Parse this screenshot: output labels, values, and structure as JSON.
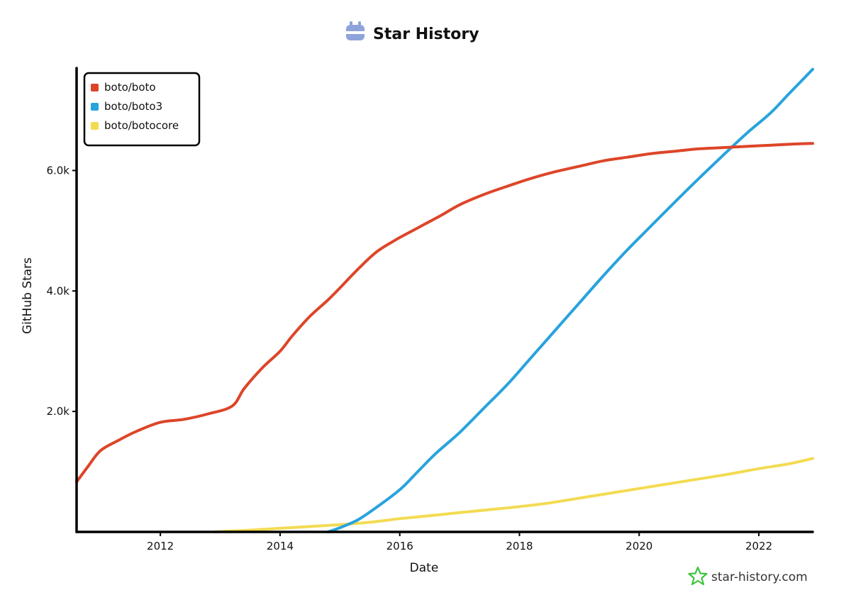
{
  "header": {
    "title": "Star History",
    "icon": "star-history-logo-icon"
  },
  "footer": {
    "watermark": "star-history.com",
    "icon": "star-outline-icon"
  },
  "colors": {
    "boto": "#dd4528",
    "boto3": "#28a3dd",
    "botocore": "#f3db52",
    "axis": "#000000"
  },
  "chart_data": {
    "type": "line",
    "title": "Star History",
    "xlabel": "Date",
    "ylabel": "GitHub Stars",
    "xlim": [
      2010.6,
      2022.9
    ],
    "ylim": [
      0,
      7700
    ],
    "x_ticks": [
      2012,
      2014,
      2016,
      2018,
      2020,
      2022
    ],
    "x_tick_labels": [
      "2012",
      "2014",
      "2016",
      "2018",
      "2020",
      "2022"
    ],
    "y_ticks": [
      2000,
      4000,
      6000
    ],
    "y_tick_labels": [
      "2.0k",
      "4.0k",
      "6.0k"
    ],
    "legend_position": "top-left",
    "series": [
      {
        "name": "boto/boto",
        "color": "#dd4528",
        "x": [
          2010.6,
          2010.8,
          2011.0,
          2011.3,
          2011.6,
          2012.0,
          2012.4,
          2012.8,
          2013.2,
          2013.4,
          2013.7,
          2014.0,
          2014.2,
          2014.5,
          2014.8,
          2015.0,
          2015.3,
          2015.6,
          2015.9,
          2016.1,
          2016.4,
          2016.7,
          2017.0,
          2017.4,
          2017.8,
          2018.2,
          2018.6,
          2019.0,
          2019.4,
          2019.8,
          2020.2,
          2020.6,
          2021.0,
          2021.4,
          2021.8,
          2022.2,
          2022.6,
          2022.9
        ],
        "values": [
          830,
          1100,
          1350,
          1520,
          1670,
          1820,
          1870,
          1960,
          2090,
          2380,
          2720,
          3000,
          3250,
          3580,
          3850,
          4050,
          4360,
          4640,
          4830,
          4940,
          5100,
          5260,
          5430,
          5600,
          5740,
          5870,
          5980,
          6070,
          6160,
          6220,
          6280,
          6320,
          6360,
          6380,
          6400,
          6420,
          6440,
          6450
        ]
      },
      {
        "name": "boto/boto3",
        "color": "#28a3dd",
        "x": [
          2014.8,
          2015.0,
          2015.3,
          2015.6,
          2016.0,
          2016.3,
          2016.6,
          2017.0,
          2017.4,
          2017.8,
          2018.2,
          2018.6,
          2019.0,
          2019.4,
          2019.8,
          2020.2,
          2020.6,
          2021.0,
          2021.4,
          2021.8,
          2022.2,
          2022.5,
          2022.9
        ],
        "values": [
          0,
          70,
          200,
          400,
          700,
          1000,
          1300,
          1650,
          2050,
          2450,
          2900,
          3350,
          3800,
          4250,
          4680,
          5080,
          5480,
          5870,
          6250,
          6620,
          6960,
          7270,
          7680
        ]
      },
      {
        "name": "boto/botocore",
        "color": "#f3db52",
        "x": [
          2012.9,
          2013.5,
          2014.0,
          2014.5,
          2015.0,
          2015.5,
          2016.0,
          2016.5,
          2017.0,
          2017.5,
          2018.0,
          2018.5,
          2019.0,
          2019.5,
          2020.0,
          2020.5,
          2021.0,
          2021.5,
          2022.0,
          2022.5,
          2022.9
        ],
        "values": [
          0,
          30,
          60,
          90,
          120,
          160,
          220,
          270,
          320,
          370,
          420,
          480,
          560,
          640,
          720,
          800,
          880,
          960,
          1050,
          1130,
          1220
        ]
      }
    ]
  }
}
